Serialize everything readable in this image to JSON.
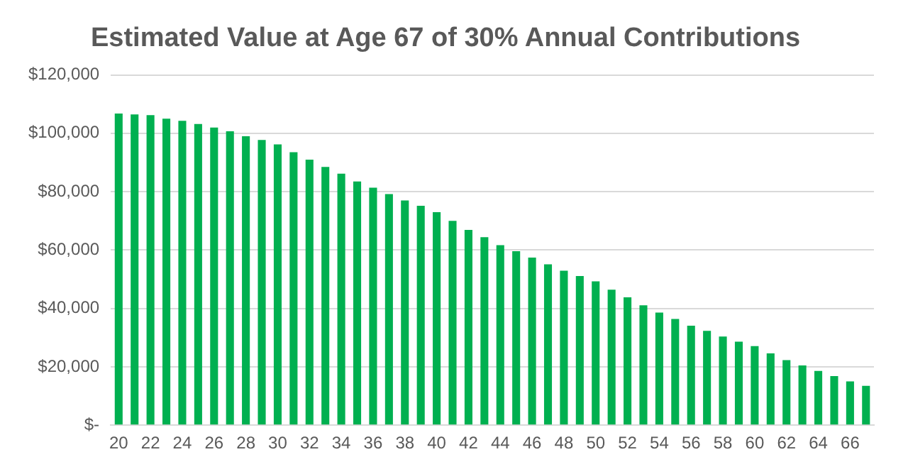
{
  "chart_data": {
    "type": "bar",
    "title": "Estimated Value at Age 67 of 30% Annual Contributions",
    "categories": [
      "20",
      null,
      "22",
      null,
      "24",
      null,
      "26",
      null,
      "28",
      null,
      "30",
      null,
      "32",
      null,
      "34",
      null,
      "36",
      null,
      "38",
      null,
      "40",
      null,
      "42",
      null,
      "44",
      null,
      "46",
      null,
      "48",
      null,
      "50",
      null,
      "52",
      null,
      "54",
      null,
      "56",
      null,
      "58",
      null,
      "60",
      null,
      "62",
      null,
      "64",
      null,
      "66",
      null
    ],
    "values": [
      106800,
      106500,
      106200,
      105000,
      104300,
      103200,
      102000,
      100700,
      99000,
      97700,
      96200,
      93500,
      91000,
      88500,
      86200,
      83500,
      81400,
      79200,
      77000,
      75200,
      73000,
      70000,
      66900,
      64400,
      61700,
      59600,
      57400,
      55100,
      52900,
      51100,
      49300,
      46400,
      43800,
      41100,
      38600,
      36400,
      34100,
      32300,
      30400,
      28600,
      27100,
      24600,
      22300,
      20500,
      18600,
      16800,
      15000,
      13500
    ],
    "color": "#00b050",
    "ylim": [
      0,
      120000
    ],
    "yticks": [
      {
        "value": 0,
        "label": "$-"
      },
      {
        "value": 20000,
        "label": "$20,000"
      },
      {
        "value": 40000,
        "label": "$40,000"
      },
      {
        "value": 60000,
        "label": "$60,000"
      },
      {
        "value": 80000,
        "label": "$80,000"
      },
      {
        "value": 100000,
        "label": "$100,000"
      },
      {
        "value": 120000,
        "label": "$120,000"
      }
    ],
    "grid": "y"
  }
}
